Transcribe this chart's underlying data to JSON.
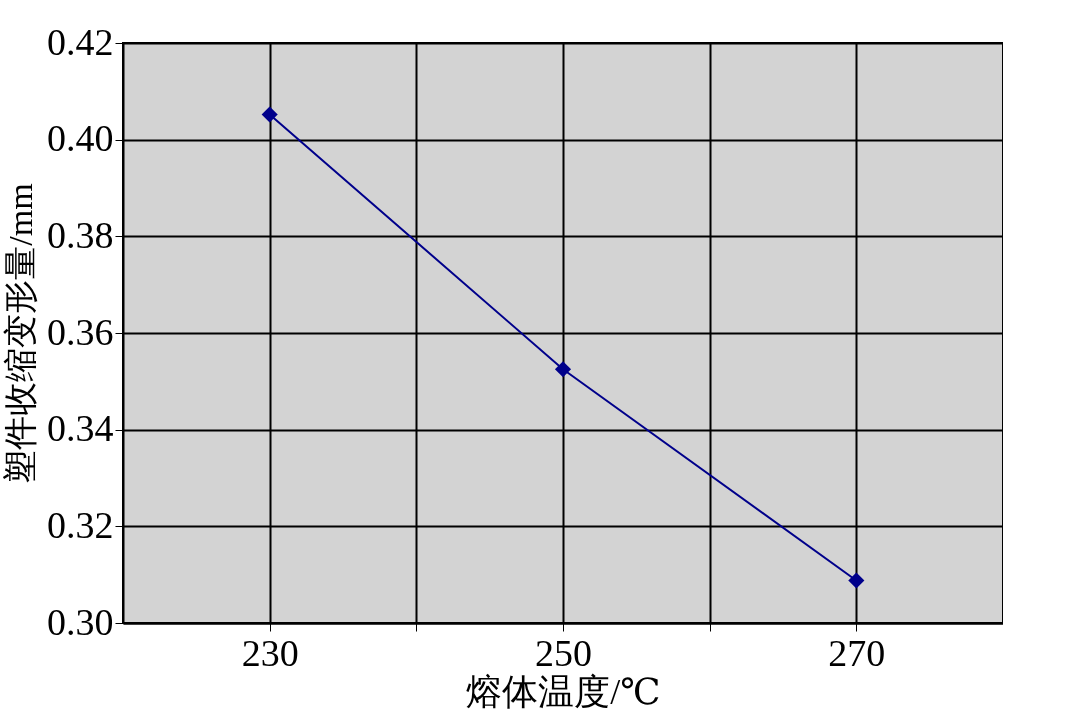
{
  "chart_data": {
    "type": "line",
    "xlabel": "熔体温度/℃",
    "ylabel": "塑件收缩变形量/mm",
    "x": [
      230,
      250,
      270
    ],
    "series": [
      {
        "color": "#00008b",
        "values": [
          0.4052,
          0.3525,
          0.3088
        ]
      }
    ],
    "xlim": [
      220,
      280
    ],
    "xticks": [
      230,
      {
        "value": 240,
        "label": null
      },
      250,
      {
        "value": 260,
        "label": null
      },
      270
    ],
    "ylim": [
      0.3,
      0.42
    ],
    "yticks": [
      {
        "value": 0.3,
        "label": "0.30"
      },
      0.32,
      0.34,
      0.36,
      0.38,
      {
        "value": 0.4,
        "label": "0.40"
      },
      0.42
    ],
    "grid": true,
    "marker": "diamond",
    "line_style": "solid"
  }
}
